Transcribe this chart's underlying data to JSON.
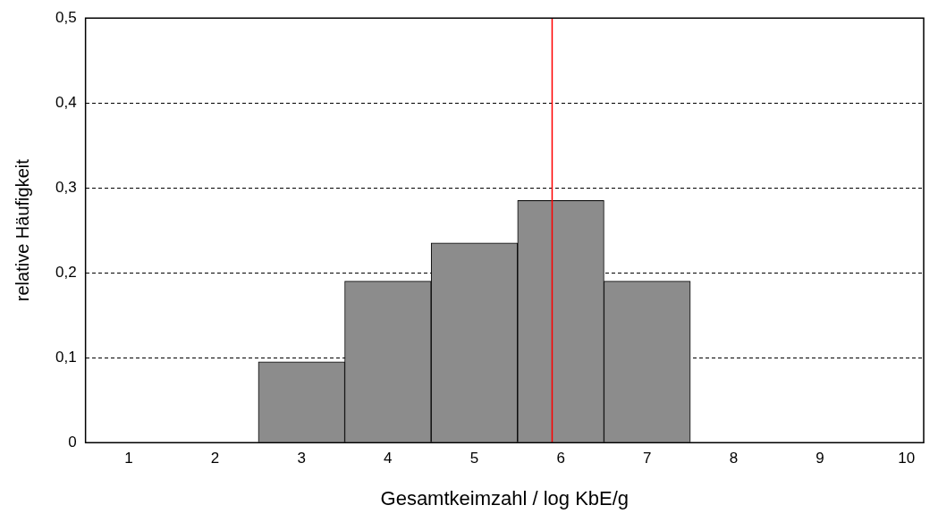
{
  "chart_data": {
    "type": "histogram",
    "xlabel": "Gesamtkeimzahl / log KbE/g",
    "ylabel": "relative Häufigkeit",
    "bins": [
      0.5,
      1.5,
      2.5,
      3.5,
      4.5,
      5.5,
      6.5,
      7.5,
      8.5,
      9.5,
      10.5
    ],
    "values": [
      0,
      0,
      0.095,
      0.19,
      0.235,
      0.285,
      0.19,
      0,
      0,
      0
    ],
    "color": "#8c8c8c",
    "xlim": [
      0.5,
      10.2
    ],
    "xticks": [
      1,
      2,
      3,
      4,
      5,
      6,
      7,
      8,
      9,
      10
    ],
    "ylim": [
      0,
      0.5
    ],
    "yticks": [
      0,
      {
        "value": 0.1,
        "label": "0,1"
      },
      {
        "value": 0.2,
        "label": "0,2"
      },
      {
        "value": 0.3,
        "label": "0,3"
      },
      {
        "value": 0.4,
        "label": "0,4"
      },
      {
        "value": 0.5,
        "label": "0,5"
      }
    ],
    "grid": "y",
    "legend": false,
    "ref_lines": [
      {
        "axis": "x",
        "value": 5.9,
        "color": "#ff0000"
      }
    ]
  }
}
